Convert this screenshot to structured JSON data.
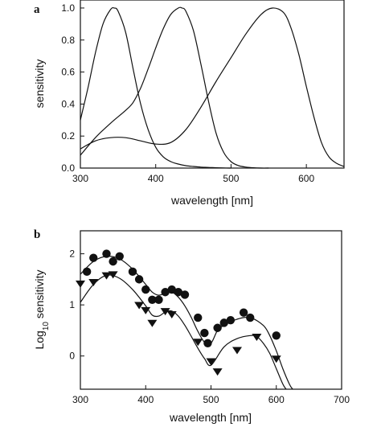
{
  "chart_data": [
    {
      "type": "line",
      "panel_label": "a",
      "xlabel": "wavelength  [nm]",
      "ylabel": "sensitivity",
      "xlim": [
        300,
        650
      ],
      "ylim": [
        0,
        1.05
      ],
      "xticks": [
        300,
        400,
        500,
        600
      ],
      "yticks": [
        0.0,
        0.2,
        0.4,
        0.6,
        0.8,
        1.0
      ],
      "ytick_labels": [
        "0.0",
        "0.2",
        "0.4",
        "0.6",
        "0.8",
        "1.0"
      ],
      "grid": false,
      "series": [
        {
          "x": [
            300,
            310,
            320,
            330,
            340,
            345,
            350,
            360,
            370,
            380,
            390,
            400,
            410,
            420,
            430,
            440,
            450,
            460,
            470,
            480,
            490,
            500
          ],
          "y": [
            0.3,
            0.5,
            0.72,
            0.9,
            0.99,
            1.0,
            0.98,
            0.85,
            0.62,
            0.4,
            0.24,
            0.13,
            0.07,
            0.04,
            0.025,
            0.015,
            0.01,
            0.006,
            0.004,
            0.002,
            0.001,
            0.0
          ]
        },
        {
          "x": [
            300,
            320,
            340,
            360,
            370,
            380,
            390,
            400,
            410,
            420,
            430,
            435,
            440,
            450,
            460,
            470,
            480,
            490,
            500,
            510,
            520,
            530,
            540,
            550
          ],
          "y": [
            0.08,
            0.19,
            0.28,
            0.36,
            0.41,
            0.5,
            0.62,
            0.75,
            0.87,
            0.96,
            1.0,
            1.0,
            0.98,
            0.86,
            0.65,
            0.42,
            0.22,
            0.1,
            0.04,
            0.015,
            0.006,
            0.002,
            0.0,
            0.0
          ]
        },
        {
          "x": [
            300,
            320,
            340,
            360,
            380,
            400,
            420,
            440,
            460,
            480,
            500,
            520,
            540,
            555,
            570,
            580,
            590,
            600,
            610,
            620,
            630,
            640,
            650
          ],
          "y": [
            0.12,
            0.17,
            0.19,
            0.19,
            0.17,
            0.15,
            0.16,
            0.24,
            0.38,
            0.54,
            0.69,
            0.84,
            0.96,
            1.0,
            0.97,
            0.87,
            0.71,
            0.51,
            0.32,
            0.16,
            0.07,
            0.03,
            0.01
          ]
        }
      ]
    },
    {
      "type": "scatter",
      "panel_label": "b",
      "xlabel": "wavelength [nm]",
      "ylabel_main": "Log",
      "ylabel_sub": "10",
      "ylabel_rest": " sensitivity",
      "xlim": [
        300,
        700
      ],
      "ylim": [
        -0.65,
        2.45
      ],
      "xticks": [
        300,
        400,
        500,
        600,
        700
      ],
      "yticks": [
        0,
        1,
        2
      ],
      "grid": false,
      "series": [
        {
          "marker": "circle",
          "points": [
            [
              310,
              1.65
            ],
            [
              320,
              1.92
            ],
            [
              340,
              2.0
            ],
            [
              350,
              1.85
            ],
            [
              360,
              1.95
            ],
            [
              380,
              1.65
            ],
            [
              390,
              1.5
            ],
            [
              400,
              1.3
            ],
            [
              410,
              1.1
            ],
            [
              420,
              1.1
            ],
            [
              430,
              1.25
            ],
            [
              440,
              1.3
            ],
            [
              450,
              1.25
            ],
            [
              460,
              1.2
            ],
            [
              480,
              0.75
            ],
            [
              490,
              0.45
            ],
            [
              495,
              0.25
            ],
            [
              510,
              0.55
            ],
            [
              520,
              0.65
            ],
            [
              530,
              0.7
            ],
            [
              550,
              0.85
            ],
            [
              560,
              0.75
            ],
            [
              600,
              0.4
            ]
          ],
          "fit_x": [
            300,
            320,
            340,
            360,
            380,
            400,
            410,
            420,
            430,
            440,
            450,
            460,
            470,
            480,
            490,
            500,
            510,
            520,
            540,
            560,
            580,
            590,
            600,
            610,
            620,
            625
          ],
          "fit_y": [
            1.6,
            1.85,
            1.95,
            1.9,
            1.7,
            1.4,
            1.25,
            1.19,
            1.23,
            1.25,
            1.15,
            0.98,
            0.75,
            0.48,
            0.27,
            0.25,
            0.5,
            0.6,
            0.72,
            0.75,
            0.6,
            0.4,
            0.1,
            -0.25,
            -0.55,
            -0.65
          ]
        },
        {
          "marker": "triangle-down",
          "points": [
            [
              300,
              1.42
            ],
            [
              320,
              1.45
            ],
            [
              340,
              1.58
            ],
            [
              350,
              1.6
            ],
            [
              390,
              1.0
            ],
            [
              400,
              0.9
            ],
            [
              410,
              0.65
            ],
            [
              430,
              0.88
            ],
            [
              440,
              0.82
            ],
            [
              480,
              0.28
            ],
            [
              500,
              -0.1
            ],
            [
              510,
              -0.3
            ],
            [
              540,
              0.12
            ],
            [
              570,
              0.38
            ],
            [
              600,
              -0.05
            ]
          ],
          "fit_x": [
            300,
            320,
            340,
            360,
            380,
            400,
            410,
            420,
            430,
            440,
            450,
            460,
            470,
            480,
            490,
            500,
            520,
            540,
            560,
            570,
            580,
            590,
            600,
            610,
            615
          ],
          "fit_y": [
            1.05,
            1.4,
            1.58,
            1.52,
            1.3,
            0.98,
            0.8,
            0.78,
            0.86,
            0.88,
            0.78,
            0.6,
            0.38,
            0.15,
            -0.05,
            -0.18,
            0.18,
            0.34,
            0.4,
            0.38,
            0.25,
            0.05,
            -0.25,
            -0.55,
            -0.65
          ]
        }
      ]
    }
  ]
}
